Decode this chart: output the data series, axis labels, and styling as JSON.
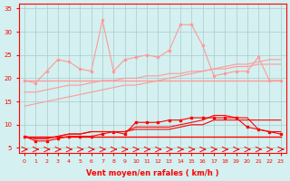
{
  "x": [
    0,
    1,
    2,
    3,
    4,
    5,
    6,
    7,
    8,
    9,
    10,
    11,
    12,
    13,
    14,
    15,
    16,
    17,
    18,
    19,
    20,
    21,
    22,
    23
  ],
  "line_upper_mean": [
    19.5,
    19.5,
    19.5,
    19.5,
    19.5,
    19.5,
    19.5,
    19.5,
    19.5,
    19.5,
    19.5,
    19.5,
    19.5,
    19.5,
    19.5,
    19.5,
    19.5,
    19.5,
    19.5,
    19.5,
    19.5,
    19.5,
    19.5,
    19.5
  ],
  "line_trend1": [
    17.0,
    17.0,
    17.5,
    18.0,
    18.5,
    18.5,
    19.0,
    19.5,
    19.5,
    20.0,
    20.0,
    20.5,
    20.5,
    21.0,
    21.0,
    21.5,
    21.5,
    22.0,
    22.0,
    22.5,
    22.5,
    23.0,
    23.0,
    23.0
  ],
  "line_trend2": [
    14.0,
    14.5,
    15.0,
    15.5,
    16.0,
    16.5,
    17.0,
    17.5,
    18.0,
    18.5,
    18.5,
    19.0,
    19.5,
    20.0,
    20.5,
    21.0,
    21.5,
    22.0,
    22.5,
    23.0,
    23.0,
    23.5,
    24.0,
    24.0
  ],
  "line_rafales": [
    19.5,
    19.0,
    21.5,
    24.0,
    23.5,
    22.0,
    21.5,
    32.5,
    21.5,
    24.0,
    24.5,
    25.0,
    24.5,
    26.0,
    31.5,
    31.5,
    27.0,
    20.5,
    21.0,
    21.5,
    21.5,
    24.5,
    19.5,
    19.5
  ],
  "line_lower_mean": [
    7.5,
    7.5,
    7.5,
    7.5,
    7.5,
    7.5,
    7.5,
    7.5,
    7.5,
    7.5,
    7.5,
    7.5,
    7.5,
    7.5,
    7.5,
    7.5,
    7.5,
    7.5,
    7.5,
    7.5,
    7.5,
    7.5,
    7.5,
    7.5
  ],
  "line_low_trend1": [
    7.5,
    7.0,
    7.0,
    7.5,
    8.0,
    8.0,
    8.5,
    8.5,
    8.5,
    8.5,
    9.0,
    9.0,
    9.0,
    9.0,
    9.5,
    10.0,
    10.0,
    11.0,
    11.0,
    11.0,
    11.0,
    11.0,
    11.0,
    11.0
  ],
  "line_low_trend2": [
    7.5,
    7.0,
    7.0,
    7.5,
    8.0,
    8.0,
    8.5,
    8.5,
    8.5,
    8.5,
    9.5,
    9.5,
    9.5,
    9.5,
    10.0,
    10.5,
    11.0,
    12.0,
    12.0,
    11.5,
    11.5,
    9.0,
    8.5,
    8.5
  ],
  "line_low_rafales": [
    7.5,
    6.5,
    6.5,
    7.0,
    7.5,
    7.5,
    7.5,
    8.0,
    8.5,
    8.0,
    10.5,
    10.5,
    10.5,
    11.0,
    11.0,
    11.5,
    11.5,
    11.5,
    11.5,
    11.5,
    9.5,
    9.0,
    8.5,
    8.0
  ],
  "bg_color": "#d4f0f0",
  "grid_color": "#aacccc",
  "upper_line_color": "#ff9999",
  "lower_line_color": "#ff0000",
  "xlabel": "Vent moyen/en rafales ( km/h )",
  "ylim": [
    4,
    36
  ],
  "yticks": [
    5,
    10,
    15,
    20,
    25,
    30,
    35
  ],
  "xticks": [
    0,
    1,
    2,
    3,
    4,
    5,
    6,
    7,
    8,
    9,
    10,
    11,
    12,
    13,
    14,
    15,
    16,
    17,
    18,
    19,
    20,
    21,
    22,
    23
  ]
}
